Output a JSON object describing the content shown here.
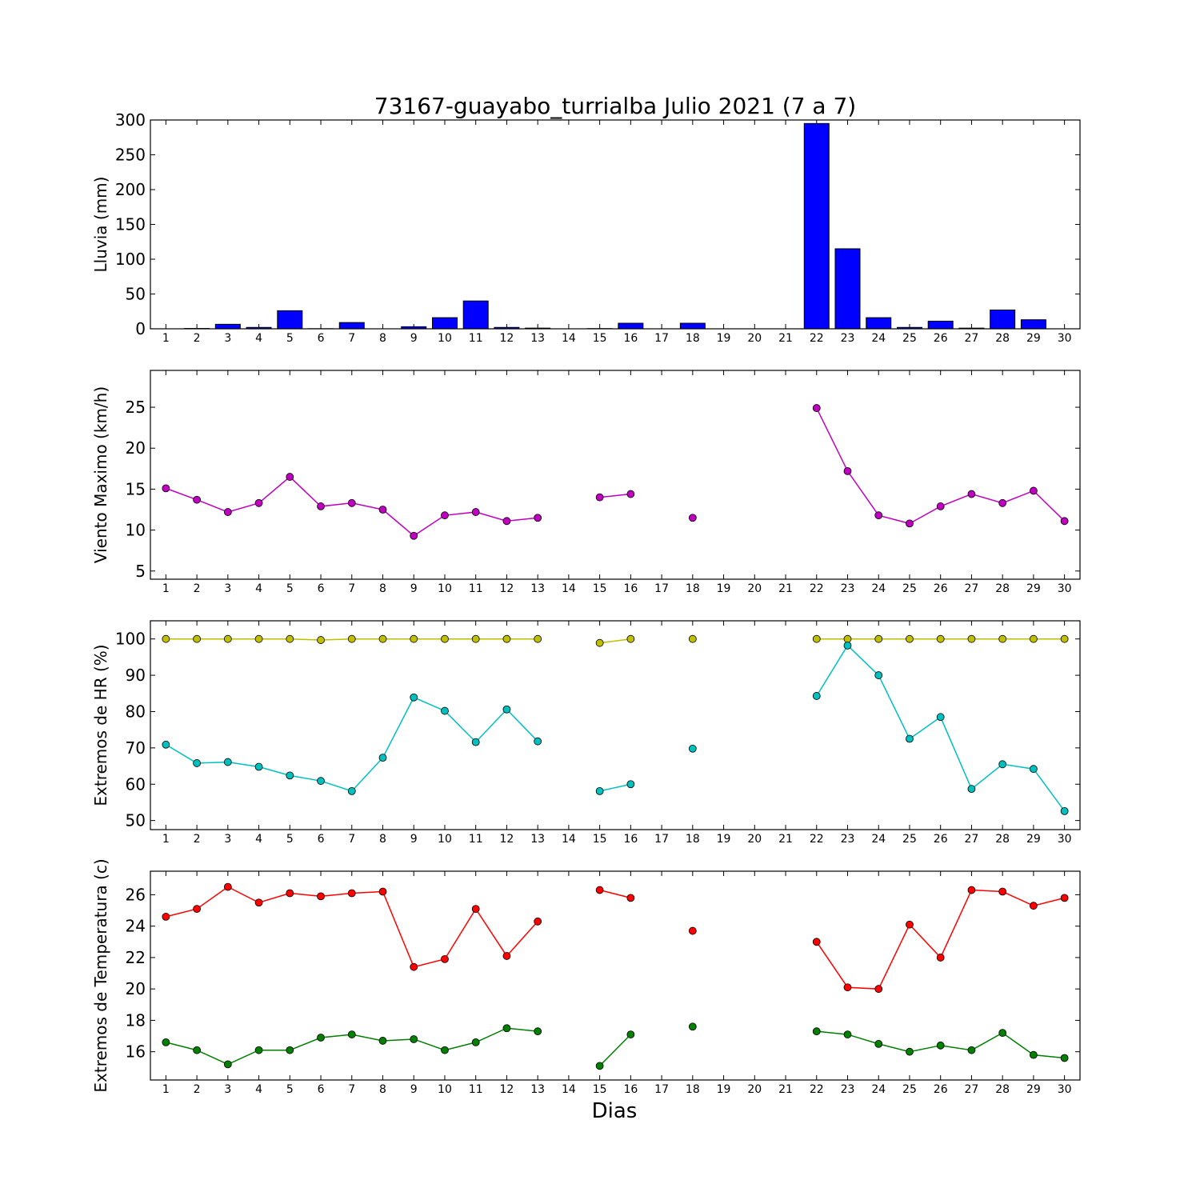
{
  "chart_data": [
    {
      "type": "bar",
      "title": "73167-guayabo_turrialba Julio 2021  (7 a 7)",
      "xlabel": "",
      "ylabel": "Lluvia (mm)",
      "ylim": [
        0,
        300
      ],
      "yticks": [
        0,
        50,
        100,
        150,
        200,
        250,
        300
      ],
      "x": [
        1,
        2,
        3,
        4,
        5,
        6,
        7,
        8,
        9,
        10,
        11,
        12,
        13,
        14,
        15,
        16,
        17,
        18,
        19,
        20,
        21,
        22,
        23,
        24,
        25,
        26,
        27,
        28,
        29,
        30
      ],
      "series": [
        {
          "color": "#0000ff",
          "values": [
            0,
            0.5,
            6.5,
            2,
            26,
            0.2,
            9,
            0,
            3,
            16,
            40,
            2,
            1,
            0,
            0.3,
            8,
            0,
            8,
            0,
            0,
            0,
            295,
            115,
            16,
            2,
            11,
            1,
            27,
            13,
            0
          ]
        }
      ]
    },
    {
      "type": "line",
      "xlabel": "",
      "ylabel": "Viento Maximo (km/h)",
      "ylim": [
        4,
        29.5
      ],
      "yticks": [
        5,
        10,
        15,
        20,
        25
      ],
      "x": [
        1,
        2,
        3,
        4,
        5,
        6,
        7,
        8,
        9,
        10,
        11,
        12,
        13,
        14,
        15,
        16,
        17,
        18,
        19,
        20,
        21,
        22,
        23,
        24,
        25,
        26,
        27,
        28,
        29,
        30
      ],
      "series": [
        {
          "color": "#bf00bf",
          "values": [
            15.1,
            13.7,
            12.2,
            13.3,
            16.5,
            12.9,
            13.3,
            12.5,
            9.3,
            11.8,
            12.2,
            11.1,
            11.5,
            null,
            14.0,
            14.4,
            null,
            11.5,
            null,
            null,
            null,
            24.9,
            17.2,
            11.8,
            10.8,
            12.9,
            14.4,
            13.3,
            14.8,
            11.1
          ]
        }
      ]
    },
    {
      "type": "line",
      "xlabel": "",
      "ylabel": "Extremos de HR (%)",
      "ylim": [
        47.5,
        105
      ],
      "yticks": [
        50,
        60,
        70,
        80,
        90,
        100
      ],
      "x": [
        1,
        2,
        3,
        4,
        5,
        6,
        7,
        8,
        9,
        10,
        11,
        12,
        13,
        14,
        15,
        16,
        17,
        18,
        19,
        20,
        21,
        22,
        23,
        24,
        25,
        26,
        27,
        28,
        29,
        30
      ],
      "series": [
        {
          "color": "#bfbf00",
          "values": [
            100,
            100,
            100,
            100,
            100,
            99.7,
            100,
            100,
            100,
            100,
            100,
            100,
            100,
            null,
            98.9,
            100,
            null,
            100,
            null,
            null,
            null,
            100,
            100,
            100,
            100,
            100,
            100,
            100,
            100,
            100
          ]
        },
        {
          "color": "#00bfbf",
          "values": [
            70.9,
            65.8,
            66.1,
            64.8,
            62.4,
            60.9,
            58.1,
            67.3,
            83.9,
            80.2,
            71.6,
            80.6,
            71.8,
            null,
            58.1,
            60.0,
            null,
            69.8,
            null,
            null,
            null,
            84.3,
            98.2,
            90.0,
            72.5,
            78.5,
            58.7,
            65.5,
            64.2,
            52.6
          ]
        }
      ]
    },
    {
      "type": "line",
      "xlabel": "Dias",
      "ylabel": "Extremos de Temperatura (c)",
      "ylim": [
        14.2,
        27.5
      ],
      "yticks": [
        16,
        18,
        20,
        22,
        24,
        26
      ],
      "x": [
        1,
        2,
        3,
        4,
        5,
        6,
        7,
        8,
        9,
        10,
        11,
        12,
        13,
        14,
        15,
        16,
        17,
        18,
        19,
        20,
        21,
        22,
        23,
        24,
        25,
        26,
        27,
        28,
        29,
        30
      ],
      "series": [
        {
          "color": "#ff0000",
          "values": [
            24.6,
            25.1,
            26.5,
            25.5,
            26.1,
            25.9,
            26.1,
            26.2,
            21.4,
            21.9,
            25.1,
            22.1,
            24.3,
            null,
            26.3,
            25.8,
            null,
            23.7,
            null,
            null,
            null,
            23.0,
            20.1,
            20.0,
            24.1,
            22.0,
            26.3,
            26.2,
            25.3,
            25.8
          ]
        },
        {
          "color": "#007f00",
          "values": [
            16.6,
            16.1,
            15.2,
            16.1,
            16.1,
            16.9,
            17.1,
            16.7,
            16.8,
            16.1,
            16.6,
            17.5,
            17.3,
            null,
            15.1,
            17.1,
            null,
            17.6,
            null,
            null,
            null,
            17.3,
            17.1,
            16.5,
            16.0,
            16.4,
            16.1,
            17.2,
            15.8,
            15.6
          ]
        }
      ]
    }
  ]
}
